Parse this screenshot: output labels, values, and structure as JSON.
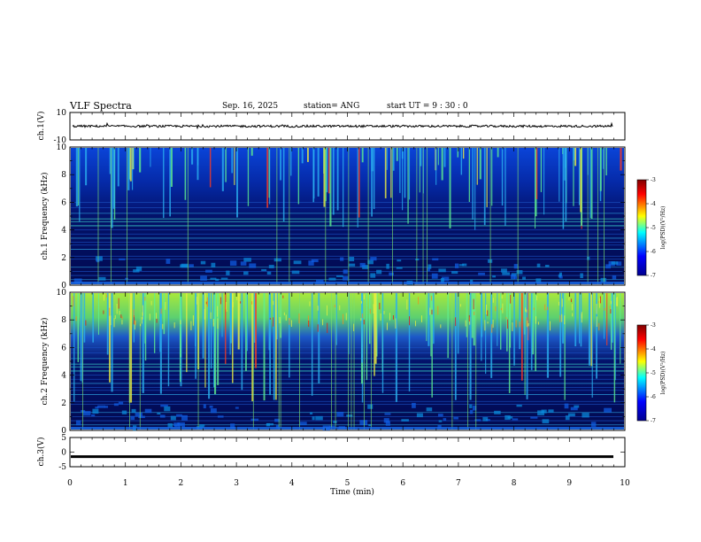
{
  "header": {
    "title": "VLF Spectra",
    "date": "Sep. 16, 2025",
    "station": "station= ANG",
    "start_ut": "start  UT =   9 : 30 : 0"
  },
  "chart_data": [
    {
      "type": "line",
      "name": "ch1-waveform",
      "ylabel": "ch.1(V)",
      "ylim": [
        -10,
        10
      ],
      "yticks": [
        10,
        -10
      ],
      "xlim": [
        0,
        10
      ],
      "description_level": 0,
      "series": [
        {
          "name": "ch.1",
          "mean": 0,
          "amplitude": 0.8
        }
      ]
    },
    {
      "type": "heatmap",
      "name": "ch1-spectrogram",
      "ylabel": "ch.1 Frequency (kHz)",
      "ylim": [
        0,
        10
      ],
      "yticks": [
        0,
        2,
        4,
        6,
        8,
        10
      ],
      "xlim": [
        0,
        10
      ],
      "colorbar": {
        "label": "log(PSD)(V²/Hz)",
        "range": [
          -7,
          -3
        ],
        "ticks": [
          -3,
          -4,
          -5,
          -6,
          -7
        ]
      }
    },
    {
      "type": "heatmap",
      "name": "ch2-spectrogram",
      "ylabel": "ch.2 Frequency (kHz)",
      "ylim": [
        0,
        10
      ],
      "yticks": [
        0,
        2,
        4,
        6,
        8,
        10
      ],
      "xlim": [
        0,
        10
      ],
      "colorbar": {
        "label": "log(PSD)(V²/Hz)",
        "range": [
          -7,
          -3
        ],
        "ticks": [
          -3,
          -4,
          -5,
          -6,
          -7
        ]
      }
    },
    {
      "type": "line",
      "name": "ch3-waveform",
      "ylabel": "ch.3(V)",
      "ylim": [
        -5,
        5
      ],
      "yticks": [
        5,
        0,
        -5
      ],
      "xlim": [
        0,
        10
      ],
      "series": [
        {
          "name": "ch.3",
          "mean": -1.5,
          "amplitude": 0.2
        }
      ]
    }
  ],
  "x_axis": {
    "label": "Time (min)",
    "ticks": [
      "0",
      "1",
      "2",
      "3",
      "4",
      "5",
      "6",
      "7",
      "8",
      "9",
      "10"
    ]
  },
  "colors": {
    "jet": [
      "#00008f",
      "#0000ff",
      "#00ffff",
      "#ffff00",
      "#ff0000",
      "#800000"
    ]
  }
}
